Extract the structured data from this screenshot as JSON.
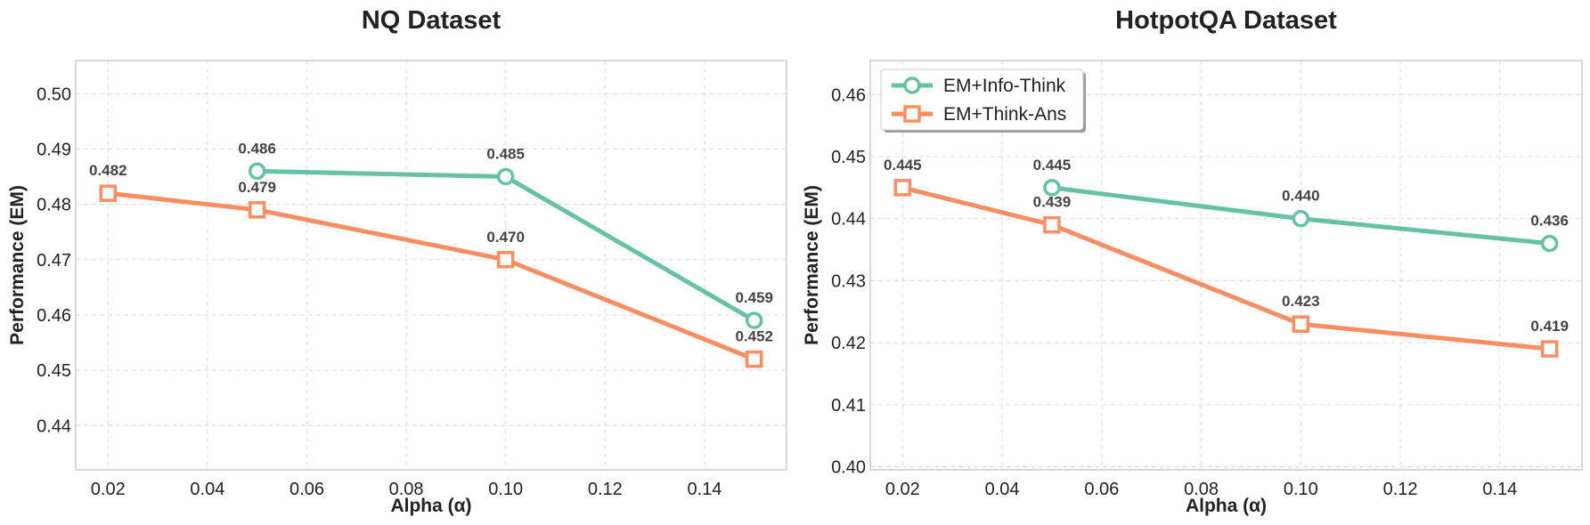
{
  "chart_data": [
    {
      "type": "line",
      "title": "NQ Dataset",
      "xlabel": "Alpha (α)",
      "ylabel": "Performance (EM)",
      "xlim": [
        0.0135,
        0.1565
      ],
      "ylim": [
        0.432,
        0.506
      ],
      "xticks": [
        "0.02",
        "0.04",
        "0.06",
        "0.08",
        "0.10",
        "0.12",
        "0.14"
      ],
      "yticks": [
        "0.44",
        "0.45",
        "0.46",
        "0.47",
        "0.48",
        "0.49",
        "0.50"
      ],
      "grid": true,
      "series": [
        {
          "name": "EM+Info-Think",
          "color": "#66c2a5",
          "marker": "circle",
          "x": [
            0.05,
            0.1,
            0.15
          ],
          "y": [
            0.486,
            0.485,
            0.459
          ],
          "labels": [
            "0.486",
            "0.485",
            "0.459"
          ]
        },
        {
          "name": "EM+Think-Ans",
          "color": "#fc8d62",
          "marker": "square",
          "x": [
            0.02,
            0.05,
            0.1,
            0.15
          ],
          "y": [
            0.482,
            0.479,
            0.47,
            0.452
          ],
          "labels": [
            "0.482",
            "0.479",
            "0.470",
            "0.452"
          ]
        }
      ]
    },
    {
      "type": "line",
      "title": "HotpotQA Dataset",
      "xlabel": "Alpha (α)",
      "ylabel": "Performance (EM)",
      "xlim": [
        0.0135,
        0.1565
      ],
      "ylim": [
        0.3995,
        0.4655
      ],
      "xticks": [
        "0.02",
        "0.04",
        "0.06",
        "0.08",
        "0.10",
        "0.12",
        "0.14"
      ],
      "yticks": [
        "0.40",
        "0.41",
        "0.42",
        "0.43",
        "0.44",
        "0.45",
        "0.46"
      ],
      "grid": true,
      "legend": "top-left",
      "series": [
        {
          "name": "EM+Info-Think",
          "color": "#66c2a5",
          "marker": "circle",
          "x": [
            0.05,
            0.1,
            0.15
          ],
          "y": [
            0.445,
            0.44,
            0.436
          ],
          "labels": [
            "0.445",
            "0.440",
            "0.436"
          ]
        },
        {
          "name": "EM+Think-Ans",
          "color": "#fc8d62",
          "marker": "square",
          "x": [
            0.02,
            0.05,
            0.1,
            0.15
          ],
          "y": [
            0.445,
            0.439,
            0.423,
            0.419
          ],
          "labels": [
            "0.445",
            "0.439",
            "0.423",
            "0.419"
          ]
        }
      ]
    }
  ]
}
